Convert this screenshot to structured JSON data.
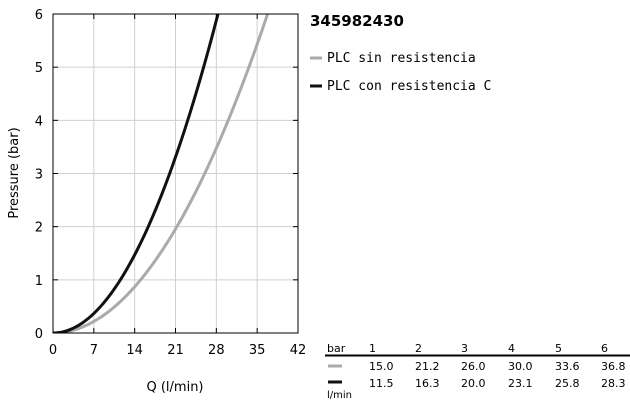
{
  "chart_data": {
    "type": "line",
    "title": "",
    "xlabel": "Q (l/min)",
    "ylabel": "Pressure (bar)",
    "xlim": [
      0,
      42
    ],
    "ylim": [
      0,
      6
    ],
    "x_ticks": [
      0,
      7,
      14,
      21,
      28,
      35,
      42
    ],
    "y_ticks": [
      0,
      1,
      2,
      3,
      4,
      5,
      6
    ],
    "grid": true,
    "legend_placement": "right",
    "series": [
      {
        "name": "PLC sin resistencia",
        "color": "#aaaaaa",
        "x": [
          0,
          15.0,
          21.2,
          26.0,
          30.0,
          33.6,
          36.8
        ],
        "y": [
          0,
          1,
          2,
          3,
          4,
          5,
          6
        ]
      },
      {
        "name": "PLC con resistencia C",
        "color": "#111111",
        "x": [
          0,
          11.5,
          16.3,
          20.0,
          23.1,
          25.8,
          28.3
        ],
        "y": [
          0,
          1,
          2,
          3,
          4,
          5,
          6
        ]
      }
    ]
  },
  "legend": {
    "title": "345982430"
  },
  "table": {
    "row_header_top": "bar",
    "row_header_bottom": "l/min",
    "pressures": [
      "1",
      "2",
      "3",
      "4",
      "5",
      "6"
    ],
    "rows": [
      {
        "color": "#aaaaaa",
        "values": [
          "15.0",
          "21.2",
          "26.0",
          "30.0",
          "33.6",
          "36.8"
        ]
      },
      {
        "color": "#111111",
        "values": [
          "11.5",
          "16.3",
          "20.0",
          "23.1",
          "25.8",
          "28.3"
        ]
      }
    ]
  }
}
